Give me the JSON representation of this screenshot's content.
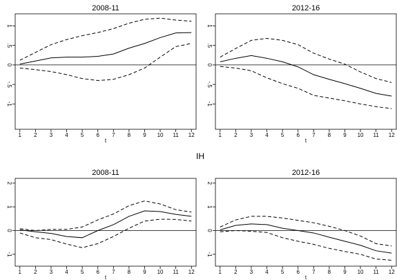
{
  "section_title": "IH",
  "chart_data": [
    {
      "type": "line",
      "title": "2008-11",
      "xlabel": "t",
      "x": [
        1,
        2,
        3,
        4,
        5,
        6,
        7,
        8,
        9,
        10,
        11,
        12
      ],
      "xlim": [
        0.7,
        12.3
      ],
      "xticks": [
        1,
        2,
        3,
        4,
        5,
        6,
        7,
        8,
        9,
        10,
        11,
        12
      ],
      "ylim": [
        -1.65,
        1.31
      ],
      "yticks": [
        {
          "value": -1,
          "label": "-1"
        },
        {
          "value": -0.5,
          "label": "-.5"
        },
        0,
        {
          "value": 0.5,
          "label": ".5"
        },
        1
      ],
      "refline": 0,
      "series": [
        {
          "color": "#000000",
          "style": "solid",
          "values": [
            0.02,
            0.1,
            0.18,
            0.2,
            0.2,
            0.22,
            0.28,
            0.43,
            0.55,
            0.7,
            0.82,
            0.83
          ]
        },
        {
          "color": "#000000",
          "style": "dashed",
          "values": [
            0.12,
            0.32,
            0.52,
            0.65,
            0.75,
            0.83,
            0.93,
            1.07,
            1.17,
            1.2,
            1.15,
            1.12
          ]
        },
        {
          "color": "#000000",
          "style": "dashed",
          "values": [
            -0.08,
            -0.12,
            -0.17,
            -0.25,
            -0.35,
            -0.4,
            -0.37,
            -0.25,
            -0.08,
            0.2,
            0.47,
            0.55
          ]
        }
      ]
    },
    {
      "type": "line",
      "title": "2012-16",
      "xlabel": "t",
      "x": [
        1,
        2,
        3,
        4,
        5,
        6,
        7,
        8,
        9,
        10,
        11,
        12
      ],
      "xlim": [
        0.7,
        12.3
      ],
      "xticks": [
        1,
        2,
        3,
        4,
        5,
        6,
        7,
        8,
        9,
        10,
        11,
        12
      ],
      "ylim": [
        -1.65,
        1.31
      ],
      "yticks": [
        {
          "value": -1,
          "label": "-1"
        },
        {
          "value": -0.5,
          "label": "-.5"
        },
        0,
        {
          "value": 0.5,
          "label": ".5"
        },
        1
      ],
      "refline": 0,
      "series": [
        {
          "color": "#000000",
          "style": "solid",
          "values": [
            0.08,
            0.17,
            0.24,
            0.17,
            0.08,
            -0.05,
            -0.25,
            -0.37,
            -0.48,
            -0.6,
            -0.73,
            -0.8
          ]
        },
        {
          "color": "#000000",
          "style": "dashed",
          "values": [
            0.2,
            0.42,
            0.63,
            0.68,
            0.63,
            0.52,
            0.3,
            0.15,
            0.02,
            -0.18,
            -0.35,
            -0.45
          ]
        },
        {
          "color": "#000000",
          "style": "dashed",
          "values": [
            -0.04,
            -0.08,
            -0.15,
            -0.33,
            -0.48,
            -0.6,
            -0.78,
            -0.85,
            -0.92,
            -1.0,
            -1.07,
            -1.12
          ]
        }
      ]
    },
    {
      "type": "line",
      "title": "2008-11",
      "xlabel": "t",
      "x": [
        1,
        2,
        3,
        4,
        5,
        6,
        7,
        8,
        9,
        10,
        11,
        12
      ],
      "xlim": [
        0.7,
        12.3
      ],
      "xticks": [
        1,
        2,
        3,
        4,
        5,
        6,
        7,
        8,
        9,
        10,
        11,
        12
      ],
      "ylim": [
        -1.5,
        2.2
      ],
      "yticks": [
        -1,
        0,
        1,
        2
      ],
      "refline": 0,
      "series": [
        {
          "color": "#000000",
          "style": "solid",
          "values": [
            0.03,
            -0.05,
            -0.12,
            -0.25,
            -0.3,
            0.0,
            0.25,
            0.6,
            0.83,
            0.8,
            0.68,
            0.6
          ]
        },
        {
          "color": "#000000",
          "style": "dashed",
          "values": [
            0.08,
            0.0,
            0.05,
            0.05,
            0.15,
            0.45,
            0.7,
            1.05,
            1.25,
            1.12,
            0.88,
            0.78
          ]
        },
        {
          "color": "#000000",
          "style": "dashed",
          "values": [
            -0.1,
            -0.3,
            -0.38,
            -0.57,
            -0.72,
            -0.55,
            -0.25,
            0.1,
            0.4,
            0.48,
            0.47,
            0.4
          ]
        }
      ]
    },
    {
      "type": "line",
      "title": "2012-16",
      "xlabel": "t",
      "x": [
        1,
        2,
        3,
        4,
        5,
        6,
        7,
        8,
        9,
        10,
        11,
        12
      ],
      "xlim": [
        0.7,
        12.3
      ],
      "xticks": [
        1,
        2,
        3,
        4,
        5,
        6,
        7,
        8,
        9,
        10,
        11,
        12
      ],
      "ylim": [
        -1.5,
        2.2
      ],
      "yticks": [
        -1,
        0,
        1,
        2
      ],
      "refline": 0,
      "series": [
        {
          "color": "#000000",
          "style": "solid",
          "values": [
            0.03,
            0.22,
            0.28,
            0.25,
            0.1,
            0.0,
            -0.1,
            -0.28,
            -0.45,
            -0.62,
            -0.85,
            -0.95
          ]
        },
        {
          "color": "#000000",
          "style": "dashed",
          "values": [
            0.15,
            0.45,
            0.6,
            0.6,
            0.53,
            0.43,
            0.33,
            0.18,
            0.0,
            -0.23,
            -0.55,
            -0.65
          ]
        },
        {
          "color": "#000000",
          "style": "dashed",
          "values": [
            -0.05,
            0.0,
            -0.03,
            -0.08,
            -0.3,
            -0.45,
            -0.58,
            -0.75,
            -0.88,
            -1.0,
            -1.2,
            -1.25
          ]
        }
      ]
    }
  ]
}
